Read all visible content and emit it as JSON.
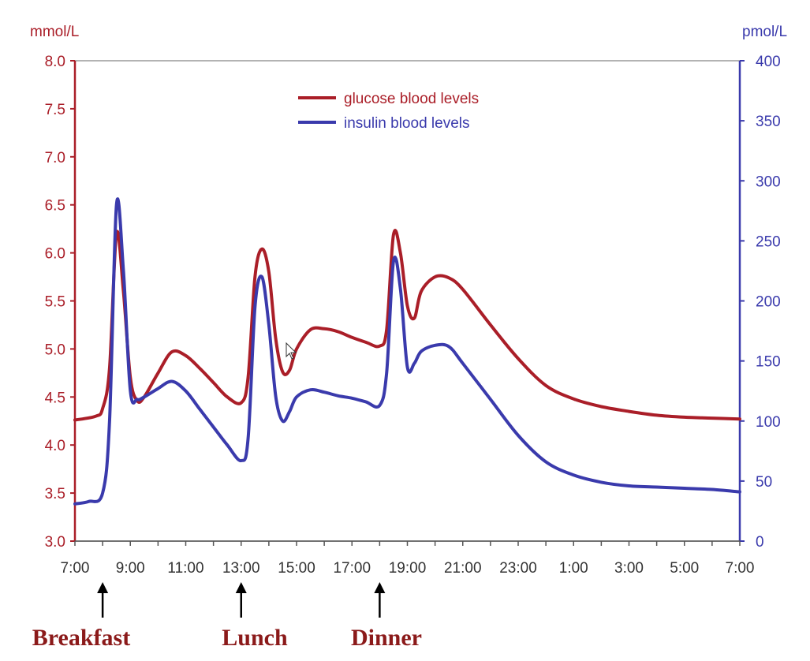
{
  "chart_data": {
    "type": "line",
    "colors": {
      "glucose": "#aa1e28",
      "insulin": "#3a3aac",
      "frame": "#888888"
    },
    "y_left": {
      "unit": "mmol/L",
      "ylim": [
        3.0,
        8.0
      ],
      "ticks": [
        "3.0",
        "3.5",
        "4.0",
        "4.5",
        "5.0",
        "5.5",
        "6.0",
        "6.5",
        "7.0",
        "7.5",
        "8.0"
      ]
    },
    "y_right": {
      "unit": "pmol/L",
      "ylim": [
        0,
        400
      ],
      "ticks": [
        "0",
        "50",
        "100",
        "150",
        "200",
        "250",
        "300",
        "350",
        "400"
      ]
    },
    "x": {
      "xlim": [
        "7:00",
        "7:00 (+1 day)"
      ],
      "ticks": [
        "7:00",
        "9:00",
        "11:00",
        "13:00",
        "15:00",
        "17:00",
        "19:00",
        "21:00",
        "23:00",
        "1:00",
        "3:00",
        "5:00",
        "7:00"
      ]
    },
    "legend": {
      "placement": "top-center",
      "items": [
        {
          "key": "glucose",
          "label": "glucose blood levels"
        },
        {
          "key": "insulin",
          "label": "insulin blood levels"
        }
      ]
    },
    "meals": [
      {
        "label": "Breakfast",
        "time": "8:00"
      },
      {
        "label": "Lunch",
        "time": "13:00"
      },
      {
        "label": "Dinner",
        "time": "18:00"
      }
    ],
    "series": [
      {
        "name": "glucose blood levels",
        "key": "glucose",
        "axis": "left",
        "points": [
          [
            "7:00",
            4.26
          ],
          [
            "7:45",
            4.3
          ],
          [
            "8:00",
            4.38
          ],
          [
            "8:15",
            4.8
          ],
          [
            "8:30",
            6.2
          ],
          [
            "8:45",
            5.6
          ],
          [
            "9:00",
            4.7
          ],
          [
            "9:15",
            4.46
          ],
          [
            "9:30",
            4.5
          ],
          [
            "10:00",
            4.75
          ],
          [
            "10:30",
            4.97
          ],
          [
            "11:00",
            4.93
          ],
          [
            "11:30",
            4.8
          ],
          [
            "12:00",
            4.65
          ],
          [
            "12:30",
            4.5
          ],
          [
            "13:00",
            4.44
          ],
          [
            "13:15",
            4.7
          ],
          [
            "13:30",
            5.75
          ],
          [
            "13:45",
            6.04
          ],
          [
            "14:00",
            5.8
          ],
          [
            "14:15",
            5.1
          ],
          [
            "14:30",
            4.76
          ],
          [
            "14:45",
            4.78
          ],
          [
            "15:00",
            5.0
          ],
          [
            "15:30",
            5.2
          ],
          [
            "16:00",
            5.21
          ],
          [
            "16:30",
            5.18
          ],
          [
            "17:00",
            5.12
          ],
          [
            "17:30",
            5.07
          ],
          [
            "18:00",
            5.03
          ],
          [
            "18:15",
            5.2
          ],
          [
            "18:30",
            6.19
          ],
          [
            "18:45",
            6.0
          ],
          [
            "19:00",
            5.45
          ],
          [
            "19:15",
            5.32
          ],
          [
            "19:30",
            5.6
          ],
          [
            "20:00",
            5.75
          ],
          [
            "20:30",
            5.74
          ],
          [
            "21:00",
            5.62
          ],
          [
            "22:00",
            5.25
          ],
          [
            "23:00",
            4.9
          ],
          [
            "0:00",
            4.62
          ],
          [
            "1:00",
            4.48
          ],
          [
            "2:00",
            4.4
          ],
          [
            "3:00",
            4.35
          ],
          [
            "4:00",
            4.31
          ],
          [
            "5:00",
            4.29
          ],
          [
            "6:00",
            4.28
          ],
          [
            "7:00 (+1 day)",
            4.27
          ]
        ]
      },
      {
        "name": "insulin blood levels",
        "key": "insulin",
        "axis": "right",
        "points": [
          [
            "7:00",
            31
          ],
          [
            "7:30",
            33
          ],
          [
            "8:00",
            40
          ],
          [
            "8:15",
            100
          ],
          [
            "8:30",
            280
          ],
          [
            "8:45",
            225
          ],
          [
            "9:00",
            125
          ],
          [
            "9:15",
            118
          ],
          [
            "9:30",
            120
          ],
          [
            "10:00",
            127
          ],
          [
            "10:30",
            133
          ],
          [
            "11:00",
            125
          ],
          [
            "11:30",
            110
          ],
          [
            "12:00",
            95
          ],
          [
            "12:30",
            80
          ],
          [
            "13:00",
            67
          ],
          [
            "13:15",
            85
          ],
          [
            "13:30",
            195
          ],
          [
            "13:45",
            220
          ],
          [
            "14:00",
            180
          ],
          [
            "14:15",
            120
          ],
          [
            "14:30",
            100
          ],
          [
            "14:45",
            108
          ],
          [
            "15:00",
            120
          ],
          [
            "15:30",
            126
          ],
          [
            "16:00",
            124
          ],
          [
            "16:30",
            121
          ],
          [
            "17:00",
            119
          ],
          [
            "17:30",
            116
          ],
          [
            "18:00",
            113
          ],
          [
            "18:15",
            140
          ],
          [
            "18:30",
            233
          ],
          [
            "18:45",
            210
          ],
          [
            "19:00",
            145
          ],
          [
            "19:15",
            148
          ],
          [
            "19:30",
            158
          ],
          [
            "20:00",
            163
          ],
          [
            "20:30",
            162
          ],
          [
            "21:00",
            148
          ],
          [
            "22:00",
            118
          ],
          [
            "23:00",
            88
          ],
          [
            "0:00",
            66
          ],
          [
            "1:00",
            55
          ],
          [
            "2:00",
            49
          ],
          [
            "3:00",
            46
          ],
          [
            "4:00",
            45
          ],
          [
            "5:00",
            44
          ],
          [
            "6:00",
            43
          ],
          [
            "7:00 (+1 day)",
            41
          ]
        ]
      }
    ]
  }
}
